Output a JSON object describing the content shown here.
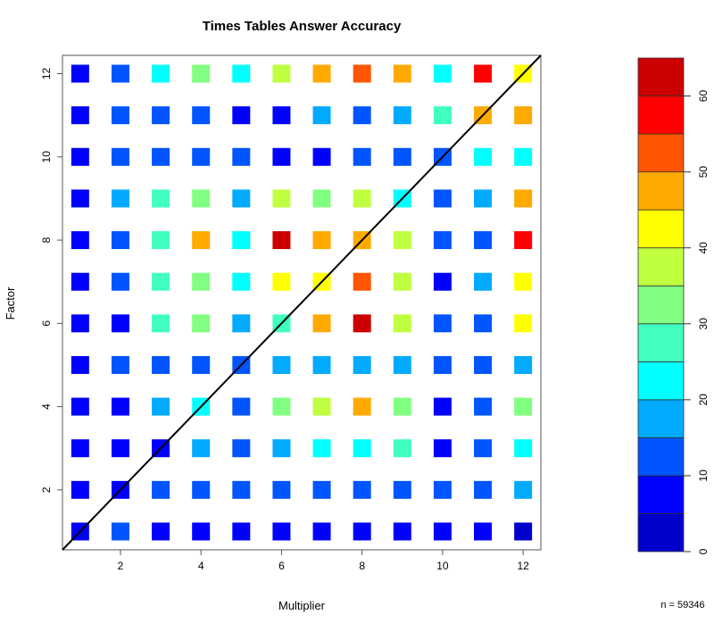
{
  "chart_data": {
    "type": "heatmap",
    "title": "Times Tables Answer Accuracy",
    "xlabel": "Multiplier",
    "ylabel": "Factor",
    "x": [
      1,
      2,
      3,
      4,
      5,
      6,
      7,
      8,
      9,
      10,
      11,
      12
    ],
    "y": [
      1,
      2,
      3,
      4,
      5,
      6,
      7,
      8,
      9,
      10,
      11,
      12
    ],
    "xticks": [
      2,
      4,
      6,
      8,
      10,
      12
    ],
    "yticks": [
      2,
      4,
      6,
      8,
      10,
      12
    ],
    "xlim": [
      0.56,
      12.44
    ],
    "ylim": [
      0.56,
      12.44
    ],
    "values_by_factor_rows_top_to_bottom": [
      [
        7.5,
        12.5,
        22.5,
        32.5,
        22.5,
        37.5,
        47.5,
        52.5,
        47.5,
        22.5,
        57.5,
        42.5
      ],
      [
        7.5,
        12.5,
        12.5,
        12.5,
        7.5,
        7.5,
        17.5,
        12.5,
        17.5,
        27.5,
        47.5,
        47.5
      ],
      [
        7.5,
        12.5,
        12.5,
        12.5,
        12.5,
        7.5,
        7.5,
        12.5,
        12.5,
        12.5,
        22.5,
        22.5
      ],
      [
        7.5,
        17.5,
        27.5,
        32.5,
        17.5,
        37.5,
        32.5,
        37.5,
        22.5,
        12.5,
        17.5,
        47.5
      ],
      [
        7.5,
        12.5,
        27.5,
        47.5,
        22.5,
        62.5,
        47.5,
        47.5,
        37.5,
        12.5,
        12.5,
        57.5
      ],
      [
        7.5,
        12.5,
        27.5,
        32.5,
        22.5,
        42.5,
        42.5,
        52.5,
        37.5,
        7.5,
        17.5,
        42.5
      ],
      [
        7.5,
        7.5,
        27.5,
        32.5,
        17.5,
        27.5,
        47.5,
        62.5,
        37.5,
        12.5,
        12.5,
        42.5
      ],
      [
        7.5,
        12.5,
        12.5,
        12.5,
        12.5,
        17.5,
        17.5,
        17.5,
        17.5,
        12.5,
        12.5,
        17.5
      ],
      [
        7.5,
        7.5,
        17.5,
        22.5,
        12.5,
        32.5,
        37.5,
        47.5,
        32.5,
        7.5,
        12.5,
        32.5
      ],
      [
        7.5,
        7.5,
        7.5,
        17.5,
        12.5,
        17.5,
        22.5,
        22.5,
        27.5,
        7.5,
        12.5,
        22.5
      ],
      [
        7.5,
        7.5,
        12.5,
        12.5,
        12.5,
        12.5,
        12.5,
        12.5,
        12.5,
        12.5,
        12.5,
        17.5
      ],
      [
        7.5,
        12.5,
        7.5,
        7.5,
        7.5,
        7.5,
        7.5,
        7.5,
        7.5,
        7.5,
        7.5,
        2.5
      ]
    ],
    "reference_line": {
      "intercept": 0,
      "slope": 1
    },
    "colorbar": {
      "breaks": [
        0,
        5,
        10,
        15,
        20,
        25,
        30,
        35,
        40,
        45,
        50,
        55,
        60,
        65
      ],
      "ticks": [
        0,
        10,
        20,
        30,
        40,
        50,
        60
      ],
      "colors": [
        "#0000CC",
        "#0000FF",
        "#0055FF",
        "#00AAFF",
        "#00FFFF",
        "#40FFBF",
        "#80FF80",
        "#BFFF40",
        "#FFFF00",
        "#FFAA00",
        "#FF5500",
        "#FF0000",
        "#CC0000"
      ],
      "placement": "right"
    },
    "annotation": "n =  59346"
  }
}
